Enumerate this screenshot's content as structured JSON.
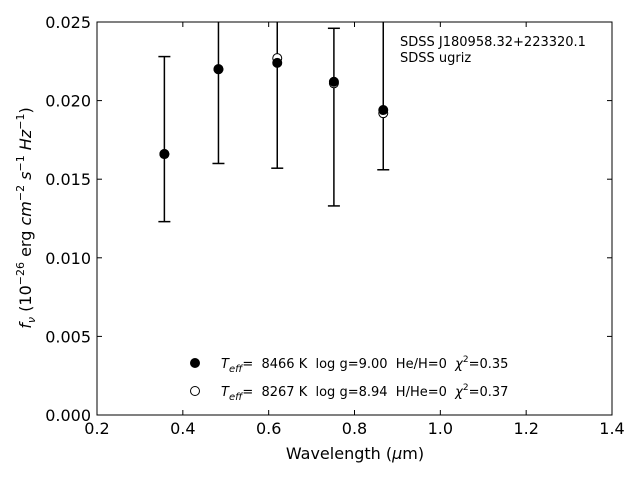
{
  "chart_data": {
    "type": "scatter",
    "annotations": [
      "SDSS J180958.32+223320.1",
      "SDSS ugriz"
    ],
    "xlabel": {
      "pre": "Wavelength (",
      "sym": "μ",
      "post": "m)"
    },
    "ylabel": {
      "base": "f",
      "sub": "ν",
      "a": " (10",
      "exp1": "−26",
      "b": " erg ",
      "c1": "cm",
      "exp2": "−2",
      "c2": " s",
      "exp3": "−1",
      "c3": " Hz",
      "exp4": "−1",
      "d": ")"
    },
    "xlim": [
      0.2,
      1.4
    ],
    "ylim": [
      0.0,
      0.025
    ],
    "xticks": [
      "0.2",
      "0.4",
      "0.6",
      "0.8",
      "1.0",
      "1.2",
      "1.4"
    ],
    "yticks": [
      "0.000",
      "0.005",
      "0.010",
      "0.015",
      "0.020",
      "0.025"
    ],
    "observed": {
      "x": [
        0.357,
        0.483,
        0.62,
        0.752,
        0.867
      ],
      "y": [
        0.0166,
        0.022,
        0.0225,
        0.0213,
        0.0195
      ],
      "err_low": [
        0.0123,
        0.016,
        0.0157,
        0.0133,
        0.0156
      ],
      "err_high": [
        0.0228,
        0.0259,
        0.028,
        0.0246,
        0.0256
      ]
    },
    "series": [
      {
        "name": "He/H=0",
        "marker": "filled-circle",
        "label": {
          "teff_label": "T",
          "teff_sub": "eff",
          "eq": "=  8466 K  log g=9.00  He/H=0  ",
          "chi": "χ",
          "chi_exp": "2",
          "chi_val": "=0.35"
        },
        "x": [
          0.357,
          0.483,
          0.62,
          0.752,
          0.867
        ],
        "y": [
          0.0166,
          0.022,
          0.0224,
          0.0212,
          0.0194
        ]
      },
      {
        "name": "H/He=0",
        "marker": "open-circle",
        "label": {
          "teff_label": "T",
          "teff_sub": "eff",
          "eq": "=  8267 K  log g=8.94  H/He=0  ",
          "chi": "χ",
          "chi_exp": "2",
          "chi_val": "=0.37"
        },
        "x": [
          0.357,
          0.483,
          0.62,
          0.752,
          0.867
        ],
        "y": [
          0.0166,
          0.022,
          0.0227,
          0.0211,
          0.0192
        ]
      }
    ],
    "colors": {
      "marker": "#000000",
      "axes": "#000000",
      "background": "#ffffff"
    }
  }
}
